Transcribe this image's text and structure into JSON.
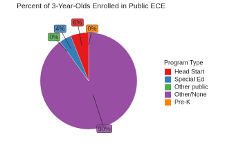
{
  "chart_data": {
    "type": "pie",
    "title": "Percent of 3-Year-Olds Enrolled in Public ECE",
    "legend_title": "Program Type",
    "categories": [
      "Head Start",
      "Special Ed",
      "Other public",
      "Other/None",
      "Pre-K"
    ],
    "values": [
      6,
      4,
      0,
      90,
      0
    ],
    "value_labels": [
      "6%",
      "4%",
      "0%",
      "90%",
      "0%"
    ],
    "colors": [
      "#e41a1c",
      "#377eb8",
      "#4daf4a",
      "#984ea3",
      "#ff7f00"
    ],
    "legend": "right"
  }
}
